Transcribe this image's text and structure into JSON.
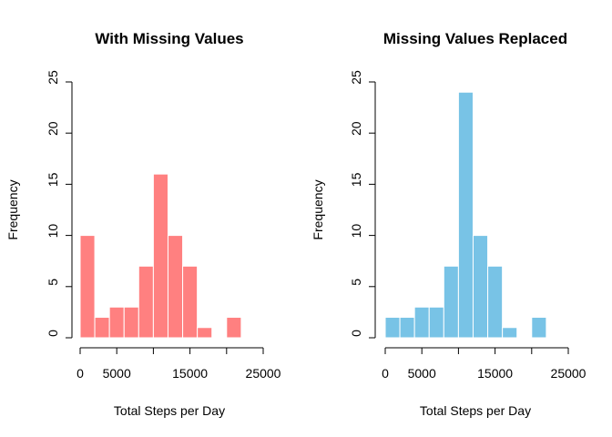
{
  "chart_data": [
    {
      "type": "histogram",
      "title": "With Missing Values",
      "xlabel": "Total Steps per Day",
      "ylabel": "Frequency",
      "bins": [
        0,
        2000,
        4000,
        6000,
        8000,
        10000,
        12000,
        14000,
        16000,
        18000,
        20000,
        22000
      ],
      "values": [
        10,
        2,
        3,
        3,
        7,
        16,
        10,
        7,
        1,
        0,
        2
      ],
      "color": "#ff8080",
      "xlim": [
        0,
        25000
      ],
      "xticks": [
        0,
        5000,
        {
          "value": 10000,
          "label": null
        },
        15000,
        {
          "value": 20000,
          "label": null
        },
        25000
      ],
      "ylim": [
        0,
        25
      ],
      "yticks": [
        0,
        5,
        10,
        15,
        20,
        25
      ]
    },
    {
      "type": "histogram",
      "title": "Missing Values Replaced",
      "xlabel": "Total Steps per Day",
      "ylabel": "Frequency",
      "bins": [
        0,
        2000,
        4000,
        6000,
        8000,
        10000,
        12000,
        14000,
        16000,
        18000,
        20000,
        22000
      ],
      "values": [
        2,
        2,
        3,
        3,
        7,
        24,
        10,
        7,
        1,
        0,
        2
      ],
      "color": "#78c3e6",
      "xlim": [
        0,
        25000
      ],
      "xticks": [
        0,
        5000,
        {
          "value": 10000,
          "label": null
        },
        15000,
        {
          "value": 20000,
          "label": null
        },
        25000
      ],
      "ylim": [
        0,
        25
      ],
      "yticks": [
        0,
        5,
        10,
        15,
        20,
        25
      ]
    }
  ]
}
